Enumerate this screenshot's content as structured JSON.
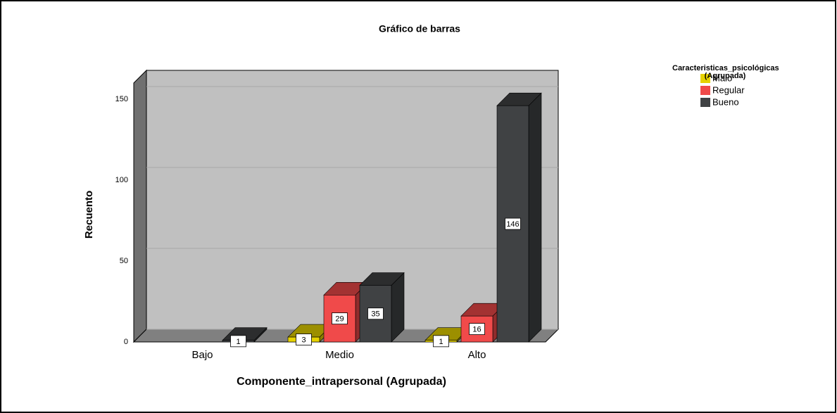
{
  "chart_data": {
    "type": "bar3d",
    "title": "Gráfico de barras",
    "x_label": "Componente_intrapersonal (Agrupada)",
    "y_label": "Recuento",
    "legend_title": "Caracteristicas_psicológicas (Agrupada)",
    "categories": [
      "Bajo",
      "Medio",
      "Alto"
    ],
    "series": [
      {
        "name": "Malo",
        "color": "#e6d200",
        "values": [
          null,
          3,
          1
        ]
      },
      {
        "name": "Regular",
        "color": "#f04a4a",
        "values": [
          null,
          29,
          16
        ]
      },
      {
        "name": "Bueno",
        "color": "#404244",
        "values": [
          1,
          35,
          146
        ]
      }
    ],
    "ylim": [
      0,
      160
    ],
    "yticks": [
      0,
      50,
      100,
      150
    ],
    "grid": true
  }
}
